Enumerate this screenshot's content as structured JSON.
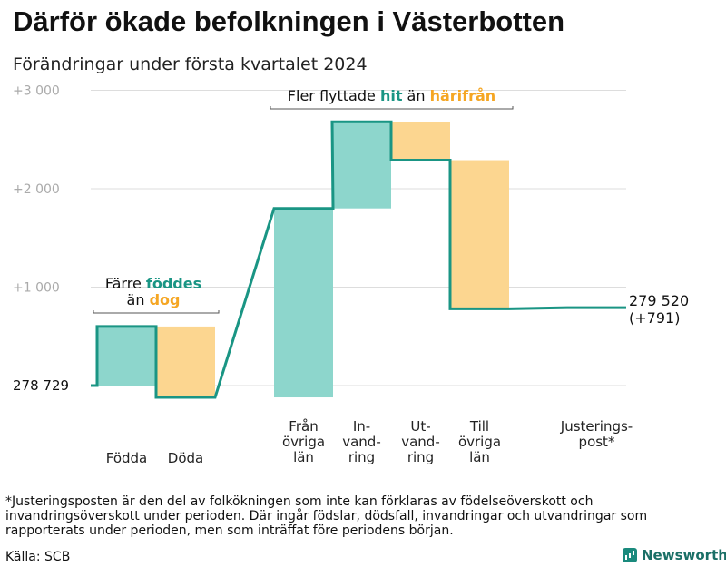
{
  "header": {
    "title": "Därför ökade befolkningen i Västerbotten",
    "subtitle": "Förändringar under första kvartalet 2024"
  },
  "colors": {
    "teal": "#1a9584",
    "teal_fill": "#8dd6cc",
    "orange": "#f5a623",
    "orange_fill": "#fcd690",
    "grid": "#dddddd",
    "tick": "#aaaaaa"
  },
  "chart_data": {
    "type": "waterfall",
    "y_axis": {
      "range": [
        0,
        3000
      ],
      "ticks": [
        {
          "value": 1000,
          "label": "+1   000"
        },
        {
          "value": 2000,
          "label": "+2   000"
        },
        {
          "value": 3000,
          "label": "+3   000"
        }
      ]
    },
    "start": {
      "value": 278729,
      "label": "278   729"
    },
    "end": {
      "value": 279520,
      "label": "279 520",
      "change_label": "(+791)"
    },
    "steps": [
      {
        "label": [
          "Födda"
        ],
        "from": 0,
        "to": 600,
        "kind": "increase"
      },
      {
        "label": [
          "Döda"
        ],
        "from": 600,
        "to": -120,
        "kind": "decrease"
      },
      {
        "label": [
          "Från",
          "övriga",
          "län"
        ],
        "from": -120,
        "to": 1800,
        "kind": "increase"
      },
      {
        "label": [
          "In-",
          "vand-",
          "ring"
        ],
        "from": 1800,
        "to": 2680,
        "kind": "increase"
      },
      {
        "label": [
          "Ut-",
          "vand-",
          "ring"
        ],
        "from": 2680,
        "to": 2290,
        "kind": "decrease"
      },
      {
        "label": [
          "Till",
          "övriga",
          "län"
        ],
        "from": 2290,
        "to": 780,
        "kind": "decrease"
      },
      {
        "label": [
          "Justerings-",
          "post*"
        ],
        "from": 780,
        "to": 791,
        "kind": "increase"
      }
    ],
    "annotations": [
      {
        "id": "birth-death",
        "lines": [
          [
            "Färre ",
            "föddes"
          ],
          [
            "än ",
            "dog"
          ]
        ],
        "span_steps": [
          0,
          1
        ]
      },
      {
        "id": "migration",
        "lines": [
          [
            "Fler flyttade ",
            "hit",
            " än ",
            "härifrån"
          ]
        ],
        "span_steps": [
          2,
          5
        ]
      }
    ]
  },
  "footnote": "*Justeringsposten är den del av folkökningen som inte kan förklaras av födelseöverskott och invandringsöverskott under perioden. Där ingår födslar, dödsfall, invandringar och utvandringar som rapporterats under perioden, men som inträffat före periodens början.",
  "source": "Källa: SCB",
  "brand": {
    "name": "Newsworthy"
  }
}
